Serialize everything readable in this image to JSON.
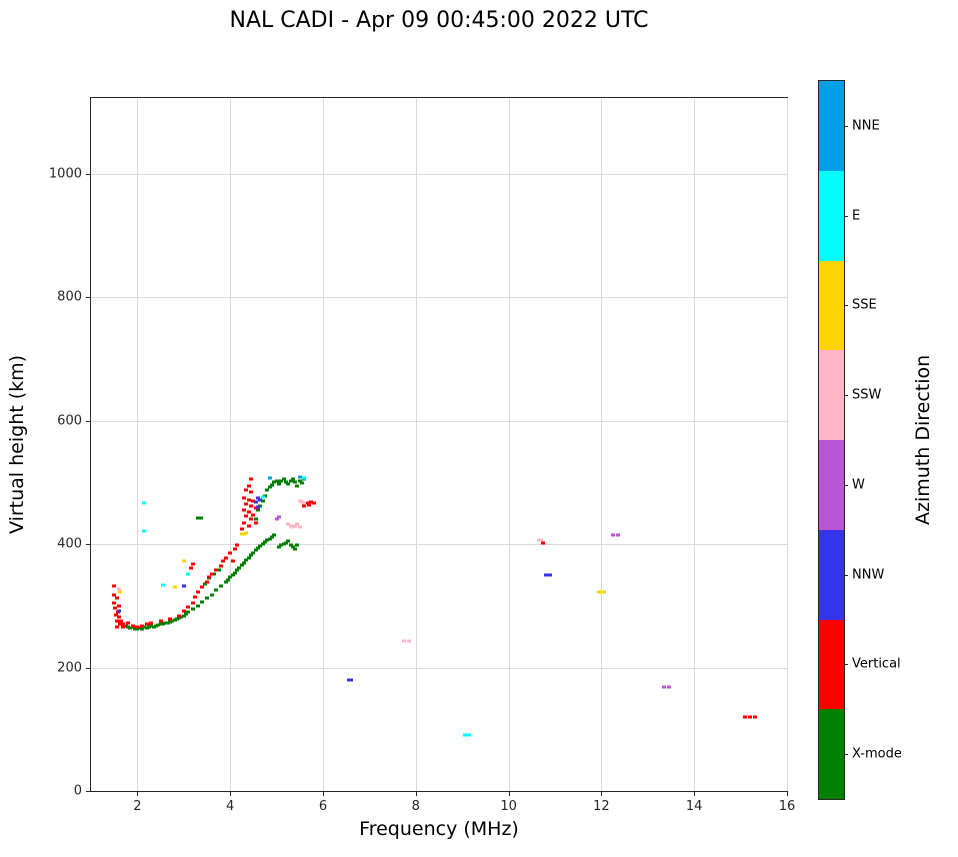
{
  "chart_data": {
    "type": "scatter",
    "title": "NAL CADI - Apr 09 00:45:00 2022 UTC",
    "xlabel": "Frequency (MHz)",
    "ylabel": "Virtual height (km)",
    "xlim": [
      1,
      16
    ],
    "ylim": [
      0,
      1123
    ],
    "xticks": [
      2,
      4,
      6,
      8,
      10,
      12,
      14,
      16
    ],
    "yticks": [
      0,
      200,
      400,
      600,
      800,
      1000
    ],
    "grid": true,
    "colorbar": {
      "title": "Azimuth Direction",
      "categories_top_to_bottom": [
        {
          "label": "NNE",
          "color": "#00A0E8"
        },
        {
          "label": "E",
          "color": "#00FFFF"
        },
        {
          "label": "SSE",
          "color": "#FFD400"
        },
        {
          "label": "SSW",
          "color": "#FFB6C6"
        },
        {
          "label": "W",
          "color": "#BA55D3"
        },
        {
          "label": "NNW",
          "color": "#3434EB"
        },
        {
          "label": "Vertical",
          "color": "#FF0000"
        },
        {
          "label": "X-mode",
          "color": "#008000"
        }
      ]
    },
    "series": [
      {
        "name": "X-mode",
        "color": "#008000",
        "points": [
          [
            1.75,
            268
          ],
          [
            1.8,
            266
          ],
          [
            1.85,
            264
          ],
          [
            1.9,
            266
          ],
          [
            1.95,
            263
          ],
          [
            2.0,
            262
          ],
          [
            2.05,
            264
          ],
          [
            2.1,
            263
          ],
          [
            2.15,
            265
          ],
          [
            2.2,
            264
          ],
          [
            2.25,
            266
          ],
          [
            2.3,
            267
          ],
          [
            2.35,
            266
          ],
          [
            2.4,
            268
          ],
          [
            2.45,
            269
          ],
          [
            2.5,
            270
          ],
          [
            2.55,
            271
          ],
          [
            2.6,
            272
          ],
          [
            2.65,
            273
          ],
          [
            2.7,
            274
          ],
          [
            2.75,
            275
          ],
          [
            2.8,
            277
          ],
          [
            2.85,
            278
          ],
          [
            2.9,
            280
          ],
          [
            2.95,
            282
          ],
          [
            3.0,
            284
          ],
          [
            3.05,
            287
          ],
          [
            3.1,
            290
          ],
          [
            3.2,
            295
          ],
          [
            3.3,
            300
          ],
          [
            3.4,
            306
          ],
          [
            3.45,
            335
          ],
          [
            3.5,
            312
          ],
          [
            3.55,
            345
          ],
          [
            3.6,
            318
          ],
          [
            3.65,
            352
          ],
          [
            3.7,
            325
          ],
          [
            3.75,
            358
          ],
          [
            3.8,
            332
          ],
          [
            3.9,
            338
          ],
          [
            3.95,
            342
          ],
          [
            4.0,
            346
          ],
          [
            4.05,
            350
          ],
          [
            4.1,
            354
          ],
          [
            4.15,
            358
          ],
          [
            4.2,
            362
          ],
          [
            4.25,
            366
          ],
          [
            4.3,
            370
          ],
          [
            4.35,
            374
          ],
          [
            4.4,
            378
          ],
          [
            4.45,
            382
          ],
          [
            4.5,
            386
          ],
          [
            4.55,
            390
          ],
          [
            4.6,
            394
          ],
          [
            4.65,
            397
          ],
          [
            4.7,
            400
          ],
          [
            4.75,
            403
          ],
          [
            4.8,
            406
          ],
          [
            4.85,
            409
          ],
          [
            4.9,
            412
          ],
          [
            4.95,
            415
          ],
          [
            5.05,
            395
          ],
          [
            5.1,
            398
          ],
          [
            5.15,
            400
          ],
          [
            5.2,
            402
          ],
          [
            5.25,
            405
          ],
          [
            5.3,
            398
          ],
          [
            5.35,
            395
          ],
          [
            5.4,
            392
          ],
          [
            5.45,
            398
          ],
          [
            4.55,
            440
          ],
          [
            4.6,
            455
          ],
          [
            4.65,
            462
          ],
          [
            4.7,
            470
          ],
          [
            4.75,
            478
          ],
          [
            4.8,
            488
          ],
          [
            4.85,
            492
          ],
          [
            4.9,
            496
          ],
          [
            4.95,
            500
          ],
          [
            5.0,
            503
          ],
          [
            5.05,
            498
          ],
          [
            5.1,
            502
          ],
          [
            5.15,
            505
          ],
          [
            5.2,
            500
          ],
          [
            5.25,
            497
          ],
          [
            5.3,
            503
          ],
          [
            5.35,
            506
          ],
          [
            5.4,
            500
          ],
          [
            5.45,
            495
          ],
          [
            5.5,
            503
          ],
          [
            5.55,
            499
          ],
          [
            5.6,
            505
          ],
          [
            3.3,
            443
          ],
          [
            3.37,
            443
          ]
        ]
      },
      {
        "name": "Vertical",
        "color": "#FF0000",
        "points": [
          [
            1.5,
            332
          ],
          [
            1.5,
            318
          ],
          [
            1.5,
            305
          ],
          [
            1.52,
            296
          ],
          [
            1.53,
            285
          ],
          [
            1.55,
            312
          ],
          [
            1.55,
            275
          ],
          [
            1.57,
            266
          ],
          [
            1.58,
            290
          ],
          [
            1.6,
            300
          ],
          [
            1.6,
            282
          ],
          [
            1.62,
            270
          ],
          [
            1.65,
            276
          ],
          [
            1.68,
            265
          ],
          [
            1.7,
            270
          ],
          [
            1.8,
            272
          ],
          [
            1.9,
            268
          ],
          [
            2.0,
            266
          ],
          [
            2.1,
            268
          ],
          [
            2.2,
            270
          ],
          [
            2.3,
            272
          ],
          [
            2.5,
            275
          ],
          [
            2.7,
            278
          ],
          [
            2.9,
            283
          ],
          [
            3.0,
            292
          ],
          [
            3.1,
            298
          ],
          [
            3.15,
            362
          ],
          [
            3.2,
            305
          ],
          [
            3.2,
            368
          ],
          [
            3.25,
            315
          ],
          [
            3.3,
            322
          ],
          [
            3.4,
            330
          ],
          [
            3.5,
            338
          ],
          [
            3.55,
            346
          ],
          [
            3.6,
            352
          ],
          [
            3.7,
            358
          ],
          [
            3.8,
            364
          ],
          [
            3.85,
            372
          ],
          [
            3.9,
            378
          ],
          [
            4.0,
            385
          ],
          [
            4.05,
            372
          ],
          [
            4.1,
            392
          ],
          [
            4.15,
            398
          ],
          [
            4.25,
            425
          ],
          [
            4.3,
            435
          ],
          [
            4.3,
            455
          ],
          [
            4.3,
            475
          ],
          [
            4.35,
            445
          ],
          [
            4.35,
            465
          ],
          [
            4.35,
            488
          ],
          [
            4.4,
            430
          ],
          [
            4.4,
            452
          ],
          [
            4.4,
            472
          ],
          [
            4.4,
            495
          ],
          [
            4.45,
            440
          ],
          [
            4.45,
            462
          ],
          [
            4.45,
            485
          ],
          [
            4.45,
            505
          ],
          [
            4.5,
            448
          ],
          [
            4.5,
            470
          ],
          [
            4.55,
            435
          ],
          [
            4.55,
            458
          ],
          [
            5.6,
            462
          ],
          [
            5.65,
            466
          ],
          [
            5.7,
            464
          ],
          [
            5.75,
            468
          ],
          [
            5.8,
            466
          ],
          [
            10.75,
            402
          ],
          [
            15.1,
            120
          ],
          [
            15.2,
            120
          ],
          [
            15.3,
            120
          ]
        ]
      },
      {
        "name": "NNW",
        "color": "#3434EB",
        "points": [
          [
            1.6,
            292
          ],
          [
            3.0,
            332
          ],
          [
            4.55,
            468
          ],
          [
            4.6,
            460
          ],
          [
            4.6,
            475
          ],
          [
            4.65,
            472
          ],
          [
            6.55,
            180
          ],
          [
            6.6,
            180
          ],
          [
            10.8,
            350
          ],
          [
            10.9,
            350
          ]
        ]
      },
      {
        "name": "E",
        "color": "#00FFFF",
        "points": [
          [
            2.15,
            466
          ],
          [
            2.15,
            422
          ],
          [
            2.55,
            334
          ],
          [
            3.1,
            352
          ],
          [
            4.7,
            476
          ],
          [
            5.6,
            507
          ],
          [
            9.05,
            90
          ],
          [
            9.15,
            90
          ]
        ]
      },
      {
        "name": "SSE",
        "color": "#FFD400",
        "points": [
          [
            1.62,
            322
          ],
          [
            2.8,
            331
          ],
          [
            3.0,
            372
          ],
          [
            4.25,
            417
          ],
          [
            4.3,
            417
          ],
          [
            4.35,
            418
          ],
          [
            11.95,
            322
          ],
          [
            12.05,
            322
          ]
        ]
      },
      {
        "name": "SSW",
        "color": "#FFB6C6",
        "points": [
          [
            1.6,
            328
          ],
          [
            5.25,
            432
          ],
          [
            5.3,
            430
          ],
          [
            5.35,
            428
          ],
          [
            5.4,
            430
          ],
          [
            5.45,
            432
          ],
          [
            5.5,
            428
          ],
          [
            5.5,
            470
          ],
          [
            5.55,
            468
          ],
          [
            5.6,
            466
          ],
          [
            7.75,
            243
          ],
          [
            7.85,
            243
          ],
          [
            10.65,
            406
          ],
          [
            10.7,
            406
          ]
        ]
      },
      {
        "name": "W",
        "color": "#BA55D3",
        "points": [
          [
            5.0,
            441
          ],
          [
            5.05,
            444
          ],
          [
            12.25,
            415
          ],
          [
            12.35,
            415
          ],
          [
            13.35,
            168
          ],
          [
            13.45,
            168
          ]
        ]
      },
      {
        "name": "NNE",
        "color": "#00A0E8",
        "points": [
          [
            4.85,
            507
          ],
          [
            5.5,
            509
          ]
        ]
      }
    ]
  }
}
